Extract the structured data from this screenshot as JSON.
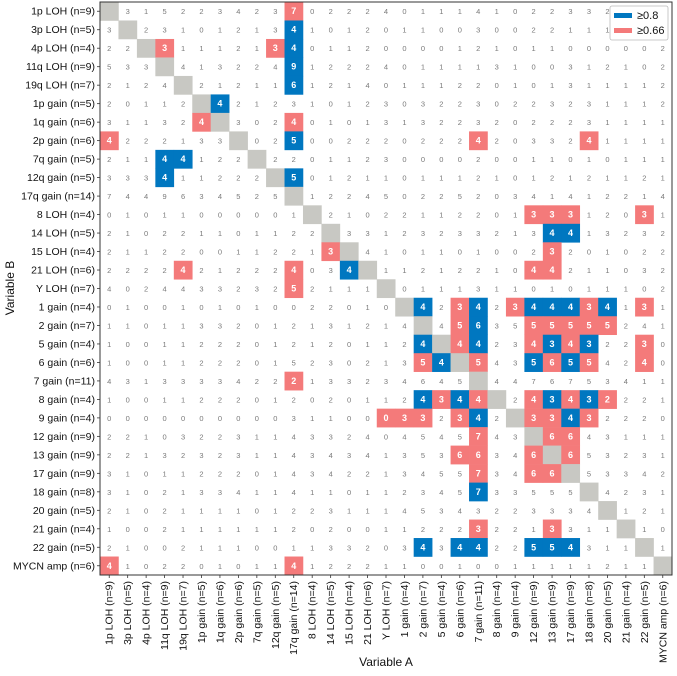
{
  "chart_data": {
    "type": "heatmap",
    "xlabel": "Variable A",
    "ylabel": "Variable B",
    "legend": {
      "position": "top-right",
      "items": [
        {
          "label": "≥0.8",
          "color": "#0077c0"
        },
        {
          "label": "≥0.66",
          "color": "#f47a7a"
        }
      ]
    },
    "colors": {
      "diagonal": "#c8c8c3",
      "high": "#0077c0",
      "mid": "#f47a7a",
      "cell_text": "#7a7a7a",
      "highlight_text": "#ffffff"
    },
    "x_labels": [
      "1p LOH (n=9)",
      "3p LOH (n=5)",
      "4p LOH (n=4)",
      "11q LOH (n=9)",
      "19q LOH (n=7)",
      "1p gain (n=5)",
      "1q gain (n=6)",
      "2p gain (n=6)",
      "7q gain (n=5)",
      "12q gain (n=5)",
      "17q gain (n=14)",
      "8 LOH (n=4)",
      "14 LOH (n=5)",
      "15 LOH (n=4)",
      "21 LOH (n=6)",
      "Y LOH (n=7)",
      "1 gain (n=4)",
      "2 gain (n=7)",
      "5 gain (n=4)",
      "6 gain (n=6)",
      "7 gain (n=11)",
      "8 gain (n=4)",
      "9 gain (n=4)",
      "12 gain (n=9)",
      "13 gain (n=9)",
      "17 gain (n=9)",
      "18 gain (n=8)",
      "20 gain (n=5)",
      "21 gain (n=4)",
      "22 gain (n=5)",
      "MYCN amp (n=6)"
    ],
    "y_labels": [
      "1p LOH (n=9)",
      "3p LOH (n=5)",
      "4p LOH (n=4)",
      "11q LOH (n=9)",
      "19q LOH (n=7)",
      "1p gain (n=5)",
      "1q gain (n=6)",
      "2p gain (n=6)",
      "7q gain (n=5)",
      "12q gain (n=5)",
      "17q gain (n=14)",
      "8 LOH (n=4)",
      "14 LOH (n=5)",
      "15 LOH (n=4)",
      "21 LOH (n=6)",
      "Y LOH (n=7)",
      "1 gain (n=4)",
      "2 gain (n=7)",
      "5 gain (n=4)",
      "6 gain (n=6)",
      "7 gain (n=11)",
      "8 gain (n=4)",
      "9 gain (n=4)",
      "12 gain (n=9)",
      "13 gain (n=9)",
      "17 gain (n=9)",
      "18 gain (n=8)",
      "20 gain (n=5)",
      "21 gain (n=4)",
      "22 gain (n=5)",
      "MYCN amp (n=6)"
    ],
    "values": [
      [
        null,
        3,
        1,
        5,
        2,
        2,
        3,
        4,
        2,
        3,
        7,
        0,
        2,
        2,
        2,
        4,
        0,
        1,
        1,
        1,
        4,
        1,
        0,
        2,
        2,
        3,
        3,
        2,
        1,
        2,
        4
      ],
      [
        3,
        null,
        2,
        3,
        1,
        0,
        1,
        2,
        1,
        3,
        4,
        1,
        0,
        1,
        2,
        0,
        1,
        1,
        0,
        0,
        3,
        0,
        0,
        2,
        2,
        1,
        1,
        1,
        1,
        1,
        2
      ],
      [
        2,
        2,
        null,
        3,
        1,
        1,
        1,
        2,
        1,
        3,
        4,
        0,
        1,
        1,
        2,
        0,
        0,
        0,
        0,
        1,
        2,
        1,
        0,
        1,
        1,
        0,
        0,
        0,
        0,
        0,
        2
      ],
      [
        5,
        3,
        3,
        null,
        4,
        1,
        3,
        2,
        2,
        4,
        9,
        1,
        2,
        2,
        2,
        4,
        0,
        1,
        1,
        1,
        1,
        3,
        1,
        0,
        0,
        3,
        1,
        2,
        1,
        0,
        2
      ],
      [
        2,
        1,
        2,
        4,
        null,
        2,
        1,
        2,
        1,
        1,
        6,
        1,
        2,
        1,
        4,
        0,
        1,
        1,
        1,
        2,
        2,
        0,
        1,
        0,
        1,
        3,
        1,
        1,
        1,
        1,
        2
      ],
      [
        2,
        0,
        1,
        1,
        2,
        null,
        4,
        2,
        1,
        2,
        3,
        1,
        0,
        1,
        2,
        3,
        0,
        3,
        2,
        2,
        3,
        0,
        2,
        2,
        3,
        2,
        3,
        1,
        1,
        1,
        2
      ],
      [
        3,
        1,
        1,
        3,
        2,
        4,
        null,
        3,
        0,
        2,
        4,
        0,
        1,
        0,
        1,
        3,
        1,
        3,
        2,
        2,
        3,
        2,
        0,
        2,
        2,
        2,
        3,
        1,
        1,
        1,
        1
      ],
      [
        4,
        2,
        2,
        2,
        1,
        3,
        3,
        null,
        0,
        2,
        5,
        0,
        0,
        2,
        2,
        2,
        0,
        2,
        2,
        2,
        4,
        2,
        0,
        3,
        3,
        2,
        4,
        1,
        1,
        1,
        1
      ],
      [
        2,
        1,
        1,
        4,
        4,
        1,
        2,
        2,
        null,
        2,
        2,
        0,
        1,
        1,
        2,
        3,
        0,
        0,
        0,
        0,
        2,
        0,
        0,
        1,
        1,
        0,
        1,
        0,
        1,
        1,
        1
      ],
      [
        3,
        3,
        3,
        4,
        1,
        1,
        2,
        2,
        2,
        null,
        5,
        0,
        1,
        2,
        1,
        1,
        0,
        1,
        1,
        1,
        2,
        1,
        0,
        1,
        2,
        1,
        2,
        1,
        1,
        2,
        1
      ],
      [
        7,
        4,
        4,
        9,
        6,
        3,
        4,
        5,
        2,
        5,
        null,
        1,
        2,
        2,
        4,
        5,
        0,
        2,
        2,
        5,
        2,
        0,
        3,
        4,
        1,
        4,
        1,
        2,
        2,
        1,
        4
      ],
      [
        0,
        1,
        0,
        1,
        1,
        0,
        0,
        0,
        0,
        0,
        1,
        null,
        2,
        1,
        0,
        2,
        2,
        1,
        1,
        2,
        2,
        0,
        1,
        3,
        3,
        3,
        1,
        2,
        0,
        3,
        1
      ],
      [
        2,
        1,
        0,
        2,
        2,
        1,
        1,
        0,
        1,
        1,
        2,
        2,
        null,
        3,
        3,
        1,
        2,
        3,
        2,
        3,
        3,
        2,
        1,
        3,
        4,
        4,
        1,
        3,
        2,
        3,
        2
      ],
      [
        2,
        1,
        1,
        2,
        2,
        0,
        0,
        1,
        1,
        2,
        2,
        1,
        3,
        null,
        4,
        1,
        0,
        1,
        1,
        0,
        1,
        0,
        0,
        2,
        3,
        2,
        0,
        1,
        0,
        2,
        2
      ],
      [
        2,
        2,
        2,
        2,
        4,
        2,
        1,
        2,
        2,
        2,
        4,
        0,
        3,
        4,
        null,
        1,
        1,
        2,
        1,
        2,
        2,
        1,
        0,
        4,
        4,
        2,
        1,
        1,
        0,
        3,
        2
      ],
      [
        4,
        0,
        2,
        4,
        4,
        3,
        3,
        2,
        3,
        2,
        5,
        2,
        1,
        1,
        1,
        null,
        0,
        1,
        1,
        1,
        3,
        1,
        1,
        0,
        1,
        0,
        1,
        1,
        1,
        0,
        2
      ],
      [
        0,
        1,
        0,
        0,
        1,
        0,
        1,
        0,
        1,
        0,
        0,
        2,
        2,
        0,
        1,
        0,
        null,
        4,
        2,
        3,
        4,
        2,
        3,
        4,
        4,
        4,
        3,
        4,
        1,
        3,
        1
      ],
      [
        1,
        1,
        0,
        1,
        1,
        3,
        3,
        2,
        0,
        1,
        2,
        1,
        3,
        1,
        2,
        1,
        4,
        null,
        4,
        5,
        6,
        3,
        5,
        5,
        5,
        5,
        5,
        5,
        2,
        4,
        1
      ],
      [
        1,
        0,
        0,
        1,
        1,
        2,
        2,
        2,
        0,
        1,
        2,
        1,
        2,
        0,
        1,
        1,
        2,
        4,
        null,
        4,
        4,
        2,
        3,
        4,
        3,
        4,
        3,
        2,
        2,
        3,
        0
      ],
      [
        1,
        0,
        0,
        1,
        1,
        2,
        2,
        2,
        0,
        1,
        5,
        2,
        3,
        0,
        2,
        1,
        3,
        5,
        4,
        null,
        5,
        4,
        3,
        5,
        6,
        5,
        5,
        4,
        2,
        4,
        0
      ],
      [
        4,
        3,
        1,
        3,
        3,
        3,
        3,
        4,
        2,
        2,
        2,
        1,
        3,
        3,
        2,
        3,
        4,
        6,
        4,
        5,
        null,
        4,
        4,
        7,
        6,
        7,
        5,
        3,
        4,
        1,
        1
      ],
      [
        1,
        0,
        0,
        1,
        1,
        2,
        2,
        2,
        0,
        1,
        2,
        0,
        2,
        0,
        1,
        1,
        2,
        4,
        3,
        4,
        4,
        null,
        2,
        4,
        3,
        4,
        3,
        2,
        2,
        2,
        1
      ],
      [
        0,
        0,
        0,
        0,
        0,
        0,
        0,
        0,
        0,
        0,
        3,
        1,
        1,
        0,
        0,
        0,
        3,
        3,
        2,
        3,
        4,
        2,
        null,
        3,
        3,
        4,
        3,
        2,
        2,
        2,
        0
      ],
      [
        2,
        2,
        1,
        0,
        3,
        2,
        2,
        3,
        1,
        1,
        4,
        3,
        3,
        2,
        4,
        0,
        4,
        5,
        4,
        5,
        7,
        4,
        3,
        null,
        6,
        6,
        4,
        3,
        1,
        1,
        1
      ],
      [
        2,
        2,
        1,
        3,
        2,
        3,
        2,
        3,
        1,
        1,
        4,
        3,
        4,
        3,
        4,
        1,
        3,
        5,
        3,
        6,
        6,
        3,
        4,
        6,
        null,
        6,
        5,
        3,
        2,
        3,
        1
      ],
      [
        3,
        1,
        0,
        1,
        1,
        2,
        2,
        2,
        0,
        1,
        4,
        3,
        4,
        2,
        2,
        1,
        3,
        4,
        5,
        5,
        7,
        3,
        4,
        6,
        6,
        null,
        5,
        3,
        3,
        4,
        2
      ],
      [
        3,
        1,
        0,
        2,
        1,
        3,
        3,
        4,
        1,
        1,
        4,
        1,
        1,
        0,
        1,
        1,
        2,
        3,
        4,
        5,
        7,
        3,
        3,
        5,
        5,
        5,
        null,
        4,
        2,
        3,
        1
      ],
      [
        2,
        1,
        0,
        2,
        1,
        1,
        1,
        1,
        0,
        1,
        2,
        2,
        3,
        1,
        1,
        1,
        4,
        5,
        3,
        4,
        3,
        2,
        2,
        3,
        3,
        3,
        4,
        null,
        1,
        2,
        1
      ],
      [
        1,
        0,
        0,
        2,
        1,
        1,
        1,
        1,
        1,
        1,
        2,
        0,
        2,
        0,
        0,
        1,
        1,
        2,
        2,
        2,
        3,
        2,
        2,
        1,
        3,
        3,
        1,
        1,
        null,
        1,
        0
      ],
      [
        2,
        1,
        0,
        0,
        2,
        1,
        1,
        1,
        0,
        0,
        1,
        1,
        3,
        3,
        2,
        0,
        3,
        4,
        3,
        4,
        4,
        2,
        2,
        5,
        5,
        4,
        3,
        1,
        1,
        null,
        1
      ],
      [
        4,
        1,
        0,
        2,
        2,
        0,
        1,
        0,
        1,
        1,
        4,
        1,
        2,
        2,
        2,
        1,
        1,
        0,
        0,
        1,
        0,
        0,
        1,
        1,
        1,
        1,
        1,
        2,
        1,
        1,
        null
      ]
    ],
    "highlights": [
      [
        "m",
        0,
        10
      ],
      [
        "b",
        1,
        10
      ],
      [
        "m",
        2,
        3
      ],
      [
        "m",
        2,
        9
      ],
      [
        "b",
        2,
        10
      ],
      [
        "b",
        3,
        10
      ],
      [
        "b",
        4,
        10
      ],
      [
        "b",
        5,
        6
      ],
      [
        "m",
        6,
        5
      ],
      [
        "m",
        6,
        10
      ],
      [
        "m",
        7,
        0
      ],
      [
        "b",
        7,
        10
      ],
      [
        "m",
        7,
        20
      ],
      [
        "m",
        7,
        26
      ],
      [
        "b",
        8,
        3
      ],
      [
        "b",
        8,
        4
      ],
      [
        "b",
        9,
        3
      ],
      [
        "b",
        9,
        10
      ],
      [
        "m",
        11,
        23
      ],
      [
        "m",
        11,
        24
      ],
      [
        "m",
        11,
        25
      ],
      [
        "m",
        11,
        29
      ],
      [
        "b",
        12,
        24
      ],
      [
        "b",
        12,
        25
      ],
      [
        "m",
        13,
        24
      ],
      [
        "b",
        14,
        13
      ],
      [
        "m",
        14,
        23
      ],
      [
        "m",
        14,
        24
      ],
      [
        "m",
        15,
        10
      ],
      [
        "m",
        14,
        4
      ],
      [
        "m",
        14,
        10
      ],
      [
        "m",
        13,
        12
      ],
      [
        "b",
        16,
        17
      ],
      [
        "m",
        16,
        19
      ],
      [
        "b",
        16,
        20
      ],
      [
        "m",
        16,
        22
      ],
      [
        "b",
        16,
        23
      ],
      [
        "b",
        16,
        24
      ],
      [
        "b",
        16,
        25
      ],
      [
        "m",
        16,
        26
      ],
      [
        "b",
        16,
        27
      ],
      [
        "m",
        16,
        29
      ],
      [
        "m",
        17,
        19
      ],
      [
        "b",
        17,
        20
      ],
      [
        "m",
        17,
        23
      ],
      [
        "m",
        17,
        24
      ],
      [
        "m",
        17,
        25
      ],
      [
        "m",
        17,
        26
      ],
      [
        "m",
        17,
        27
      ],
      [
        "b",
        18,
        17
      ],
      [
        "m",
        18,
        19
      ],
      [
        "b",
        18,
        20
      ],
      [
        "m",
        18,
        23
      ],
      [
        "b",
        18,
        24
      ],
      [
        "m",
        18,
        25
      ],
      [
        "b",
        18,
        26
      ],
      [
        "m",
        18,
        29
      ],
      [
        "m",
        19,
        17
      ],
      [
        "b",
        19,
        18
      ],
      [
        "m",
        19,
        20
      ],
      [
        "b",
        19,
        23
      ],
      [
        "m",
        19,
        24
      ],
      [
        "b",
        19,
        25
      ],
      [
        "m",
        19,
        26
      ],
      [
        "m",
        19,
        29
      ],
      [
        "m",
        20,
        10
      ],
      [
        "b",
        21,
        17
      ],
      [
        "m",
        21,
        18
      ],
      [
        "b",
        21,
        19
      ],
      [
        "m",
        21,
        20
      ],
      [
        "m",
        21,
        23
      ],
      [
        "b",
        21,
        24
      ],
      [
        "m",
        21,
        25
      ],
      [
        "b",
        21,
        26
      ],
      [
        "m",
        21,
        27
      ],
      [
        "m",
        22,
        15
      ],
      [
        "m",
        22,
        16
      ],
      [
        "m",
        22,
        17
      ],
      [
        "m",
        22,
        19
      ],
      [
        "b",
        22,
        20
      ],
      [
        "m",
        22,
        23
      ],
      [
        "m",
        22,
        24
      ],
      [
        "b",
        22,
        25
      ],
      [
        "m",
        22,
        26
      ],
      [
        "m",
        23,
        20
      ],
      [
        "m",
        23,
        24
      ],
      [
        "m",
        23,
        25
      ],
      [
        "m",
        24,
        19
      ],
      [
        "m",
        24,
        20
      ],
      [
        "m",
        24,
        23
      ],
      [
        "m",
        24,
        25
      ],
      [
        "m",
        25,
        20
      ],
      [
        "m",
        25,
        23
      ],
      [
        "m",
        25,
        24
      ],
      [
        "b",
        26,
        20
      ],
      [
        "m",
        28,
        20
      ],
      [
        "m",
        28,
        24
      ],
      [
        "b",
        29,
        17
      ],
      [
        "b",
        29,
        19
      ],
      [
        "b",
        29,
        20
      ],
      [
        "b",
        29,
        23
      ],
      [
        "b",
        29,
        24
      ],
      [
        "b",
        29,
        25
      ],
      [
        "m",
        30,
        0
      ],
      [
        "m",
        30,
        10
      ]
    ]
  }
}
